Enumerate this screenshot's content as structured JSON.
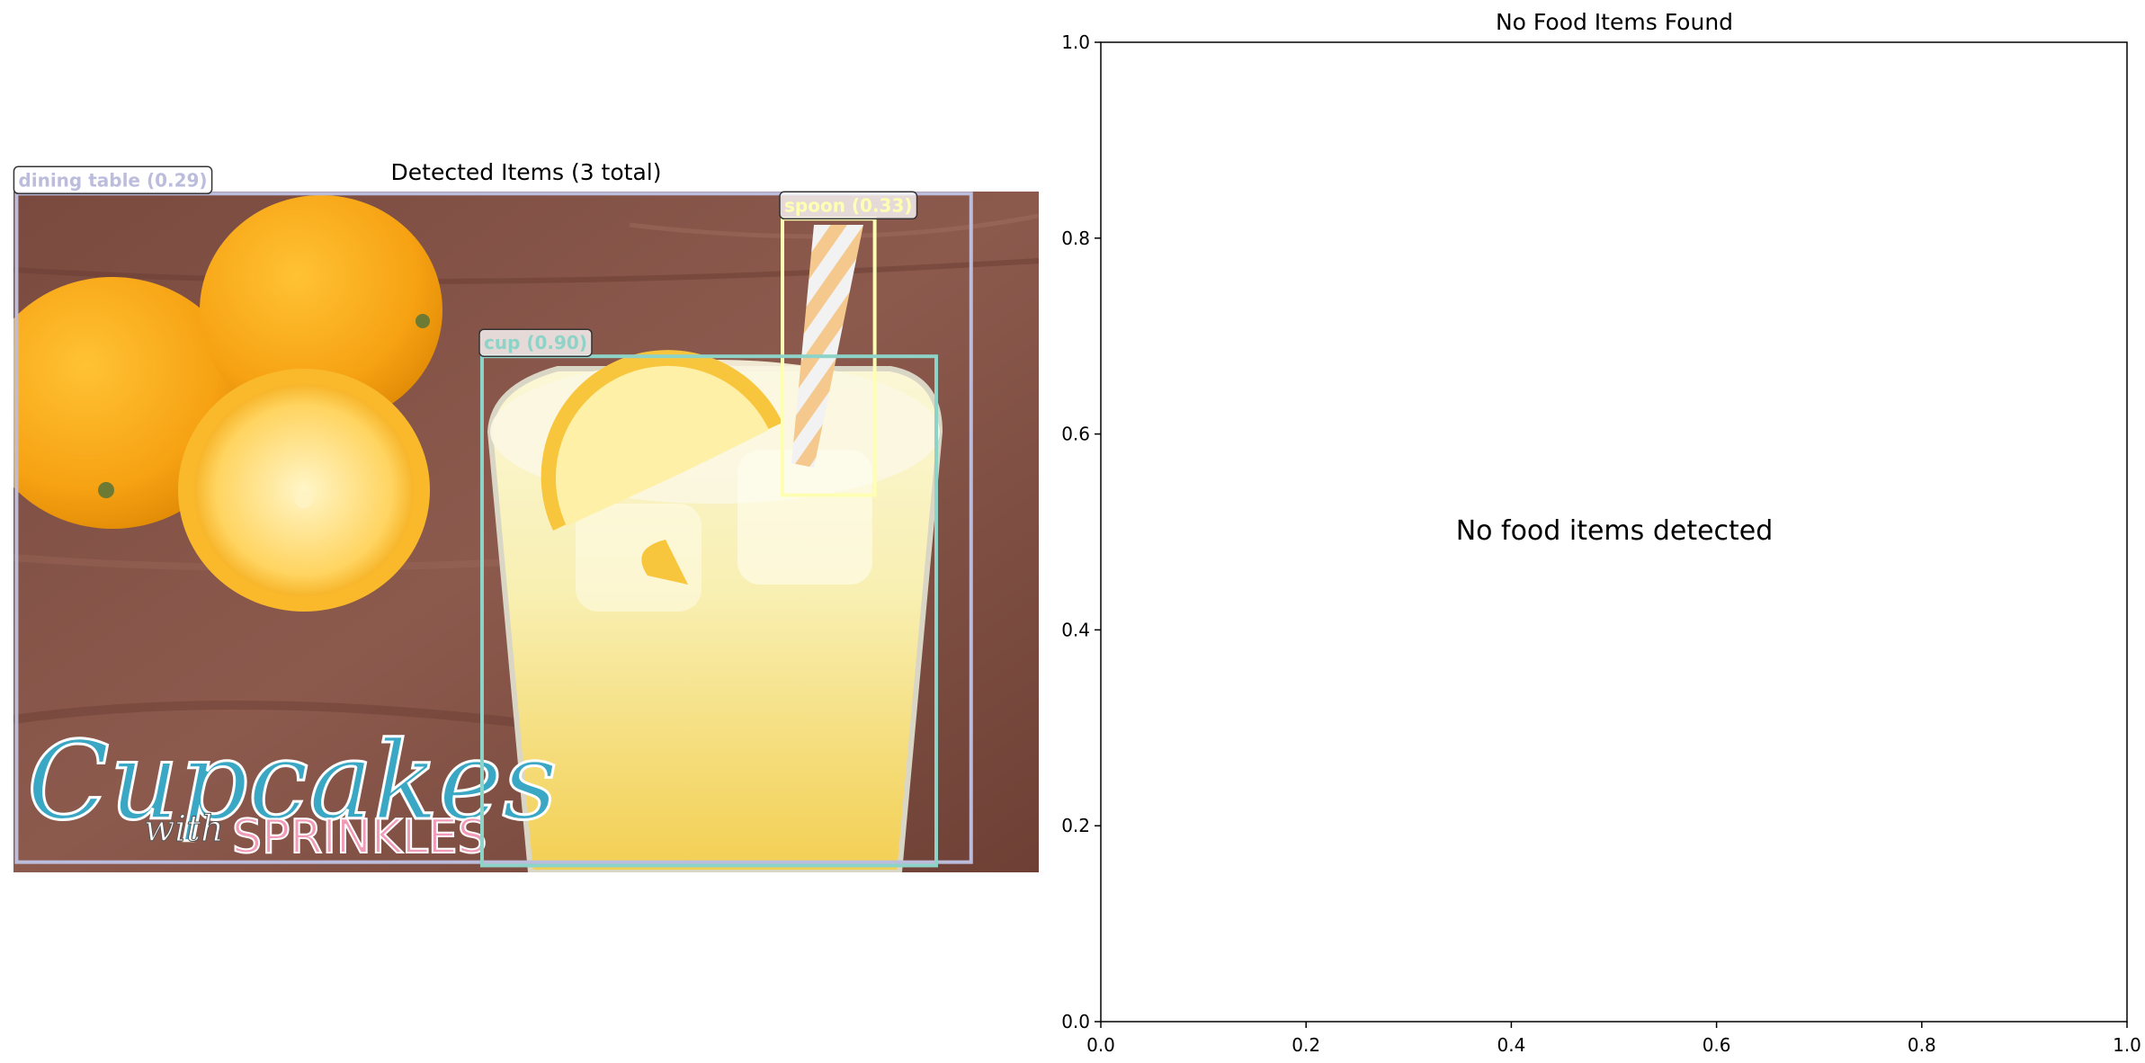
{
  "chart_data": [
    {
      "type": "image-detection",
      "title": "Detected Items (3 total)",
      "image": {
        "watermark_text": "Cupcakes with SPRINKLES"
      },
      "detections": [
        {
          "label": "dining table (0.29)",
          "class": "dining table",
          "score": 0.29,
          "color": "#bcbddc",
          "box": [
            0.003,
            0.003,
            0.934,
            0.985
          ]
        },
        {
          "label": "spoon (0.33)",
          "class": "spoon",
          "score": 0.33,
          "color": "#ffffb3",
          "box": [
            0.75,
            0.04,
            0.84,
            0.446
          ]
        },
        {
          "label": "cup (0.90)",
          "class": "cup",
          "score": 0.9,
          "color": "#8dd3c7",
          "box": [
            0.457,
            0.242,
            0.9,
            0.99
          ]
        }
      ]
    },
    {
      "type": "scatter",
      "title": "No Food Items Found",
      "annotation": "No food items detected",
      "xlim": [
        0,
        1
      ],
      "ylim": [
        0,
        1
      ],
      "x_ticks": [
        "0.0",
        "0.2",
        "0.4",
        "0.6",
        "0.8",
        "1.0"
      ],
      "y_ticks": [
        "0.0",
        "0.2",
        "0.4",
        "0.6",
        "0.8",
        "1.0"
      ],
      "grid": false,
      "series": []
    }
  ]
}
